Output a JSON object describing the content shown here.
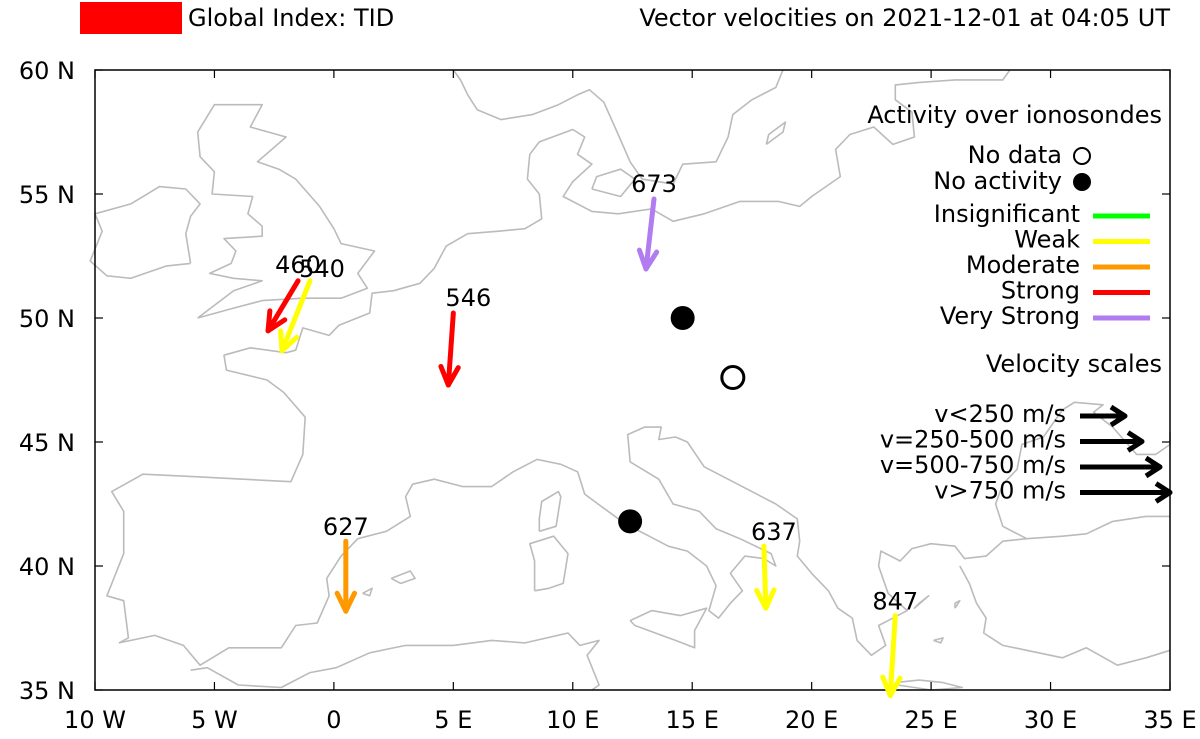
{
  "header": {
    "index_label": "Global Index: TID",
    "index_color": "#ff0000",
    "title": "Vector velocities on 2021-12-01 at 04:05 UT"
  },
  "map": {
    "lon_range": [
      -10,
      35
    ],
    "lat_range": [
      35,
      60
    ],
    "lon_ticks": [
      {
        "value": -10,
        "label": "10 W"
      },
      {
        "value": -5,
        "label": "5 W"
      },
      {
        "value": 0,
        "label": "0"
      },
      {
        "value": 5,
        "label": "5 E"
      },
      {
        "value": 10,
        "label": "10 E"
      },
      {
        "value": 15,
        "label": "15 E"
      },
      {
        "value": 20,
        "label": "20 E"
      },
      {
        "value": 25,
        "label": "25 E"
      },
      {
        "value": 30,
        "label": "30 E"
      },
      {
        "value": 35,
        "label": "35 E"
      }
    ],
    "lat_ticks": [
      {
        "value": 60,
        "label": "60 N"
      },
      {
        "value": 55,
        "label": "55 N"
      },
      {
        "value": 50,
        "label": "50 N"
      },
      {
        "value": 45,
        "label": "45 N"
      },
      {
        "value": 40,
        "label": "40 N"
      },
      {
        "value": 35,
        "label": "35 N"
      }
    ],
    "coast_color": "#bbbbbb"
  },
  "stations": [
    {
      "label": "460",
      "lon": -1.5,
      "lat": 51.5,
      "speed_class": "v=250-500 m/s",
      "activity": "Strong",
      "color": "#ff0000"
    },
    {
      "label": "540",
      "lon": -1.0,
      "lat": 51.5,
      "speed_class": "v=250-500 m/s",
      "activity": "Weak",
      "color": "#ffff00"
    },
    {
      "label": "546",
      "lon": 5.0,
      "lat": 50.2,
      "speed_class": "v=250-500 m/s",
      "activity": "Strong",
      "color": "#ff0000"
    },
    {
      "label": "673",
      "lon": 13.4,
      "lat": 54.8,
      "speed_class": "v=250-500 m/s",
      "activity": "Very Strong",
      "color": "#b07cf0"
    },
    {
      "label": "627",
      "lon": 0.5,
      "lat": 41.0,
      "speed_class": "v=250-500 m/s",
      "activity": "Moderate",
      "color": "#ff9900"
    },
    {
      "label": "637",
      "lon": 18.0,
      "lat": 40.8,
      "speed_class": "v=250-500 m/s",
      "activity": "Weak",
      "color": "#ffff00"
    },
    {
      "label": "847",
      "lon": 23.5,
      "lat": 38.0,
      "speed_class": "v=250-500 m/s",
      "activity": "Weak",
      "color": "#ffff00"
    }
  ],
  "markers": [
    {
      "lon": 14.6,
      "lat": 50.0,
      "status": "No activity"
    },
    {
      "lon": 16.7,
      "lat": 47.6,
      "status": "No data"
    },
    {
      "lon": 12.4,
      "lat": 41.8,
      "status": "No activity"
    }
  ],
  "legend": {
    "activity_title": "Activity over ionosondes",
    "no_data": "No data",
    "no_activity": "No activity",
    "levels": [
      {
        "label": "Insignificant",
        "color": "#00ff00"
      },
      {
        "label": "Weak",
        "color": "#ffff00"
      },
      {
        "label": "Moderate",
        "color": "#ff9900"
      },
      {
        "label": "Strong",
        "color": "#ff0000"
      },
      {
        "label": "Very Strong",
        "color": "#b07cf0"
      }
    ],
    "velocity_title": "Velocity scales",
    "scales": [
      {
        "label": "v<250 m/s"
      },
      {
        "label": "v=250-500 m/s"
      },
      {
        "label": "v=500-750 m/s"
      },
      {
        "label": "v>750 m/s"
      }
    ]
  }
}
